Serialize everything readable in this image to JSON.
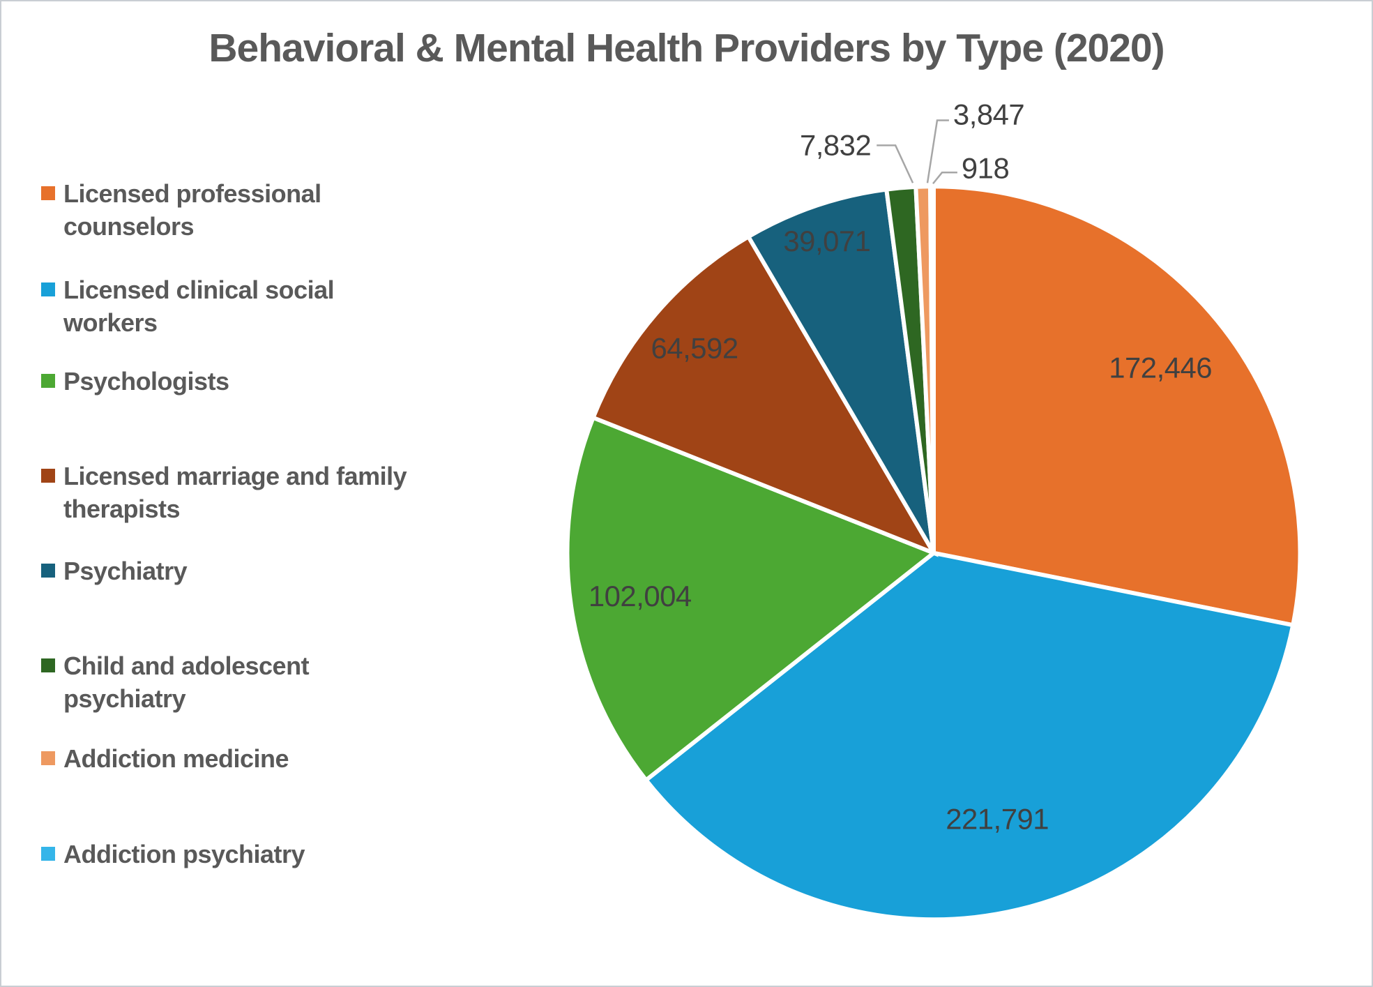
{
  "page": {
    "background": "#ffffff",
    "border_color": "#c9ced3"
  },
  "title": {
    "text": "Behavioral & Mental Health Providers by Type (2020)",
    "color": "#595959"
  },
  "legend": {
    "position": "left",
    "items": [
      {
        "label": "Licensed professional\ncounselors",
        "color": "#E7712B"
      },
      {
        "label": "Licensed clinical social\nworkers",
        "color": "#18A0D8"
      },
      {
        "label": "Psychologists",
        "color": "#4CA833"
      },
      {
        "label": "Licensed marriage and family\ntherapists",
        "color": "#A04416"
      },
      {
        "label": "Psychiatry",
        "color": "#17617D"
      },
      {
        "label": "Child and adolescent\npsychiatry",
        "color": "#2E6722"
      },
      {
        "label": "Addiction medicine",
        "color": "#EE9960"
      },
      {
        "label": "Addiction psychiatry",
        "color": "#35B5E9"
      }
    ]
  },
  "chart_data": {
    "type": "pie",
    "title": "Behavioral & Mental Health Providers by Type (2020)",
    "categories": [
      "Licensed professional counselors",
      "Licensed clinical social workers",
      "Psychologists",
      "Licensed marriage and family therapists",
      "Psychiatry",
      "Child and adolescent psychiatry",
      "Addiction medicine",
      "Addiction psychiatry"
    ],
    "values": [
      172446,
      221791,
      102004,
      64592,
      39071,
      7832,
      3847,
      918
    ],
    "value_labels": [
      "172,446",
      "221,791",
      "102,004",
      "64,592",
      "39,071",
      "7,832",
      "3,847",
      "918"
    ],
    "colors": [
      "#E7712B",
      "#18A0D8",
      "#4CA833",
      "#A04416",
      "#17617D",
      "#2E6722",
      "#EE9960",
      "#35B5E9"
    ],
    "total": 612501,
    "start_angle_deg": 0,
    "direction": "clockwise",
    "legend_position": "left",
    "grid": false,
    "label_color": "#404040",
    "leader_line_color": "#A6A6A6",
    "slice_border_color": "#ffffff"
  }
}
